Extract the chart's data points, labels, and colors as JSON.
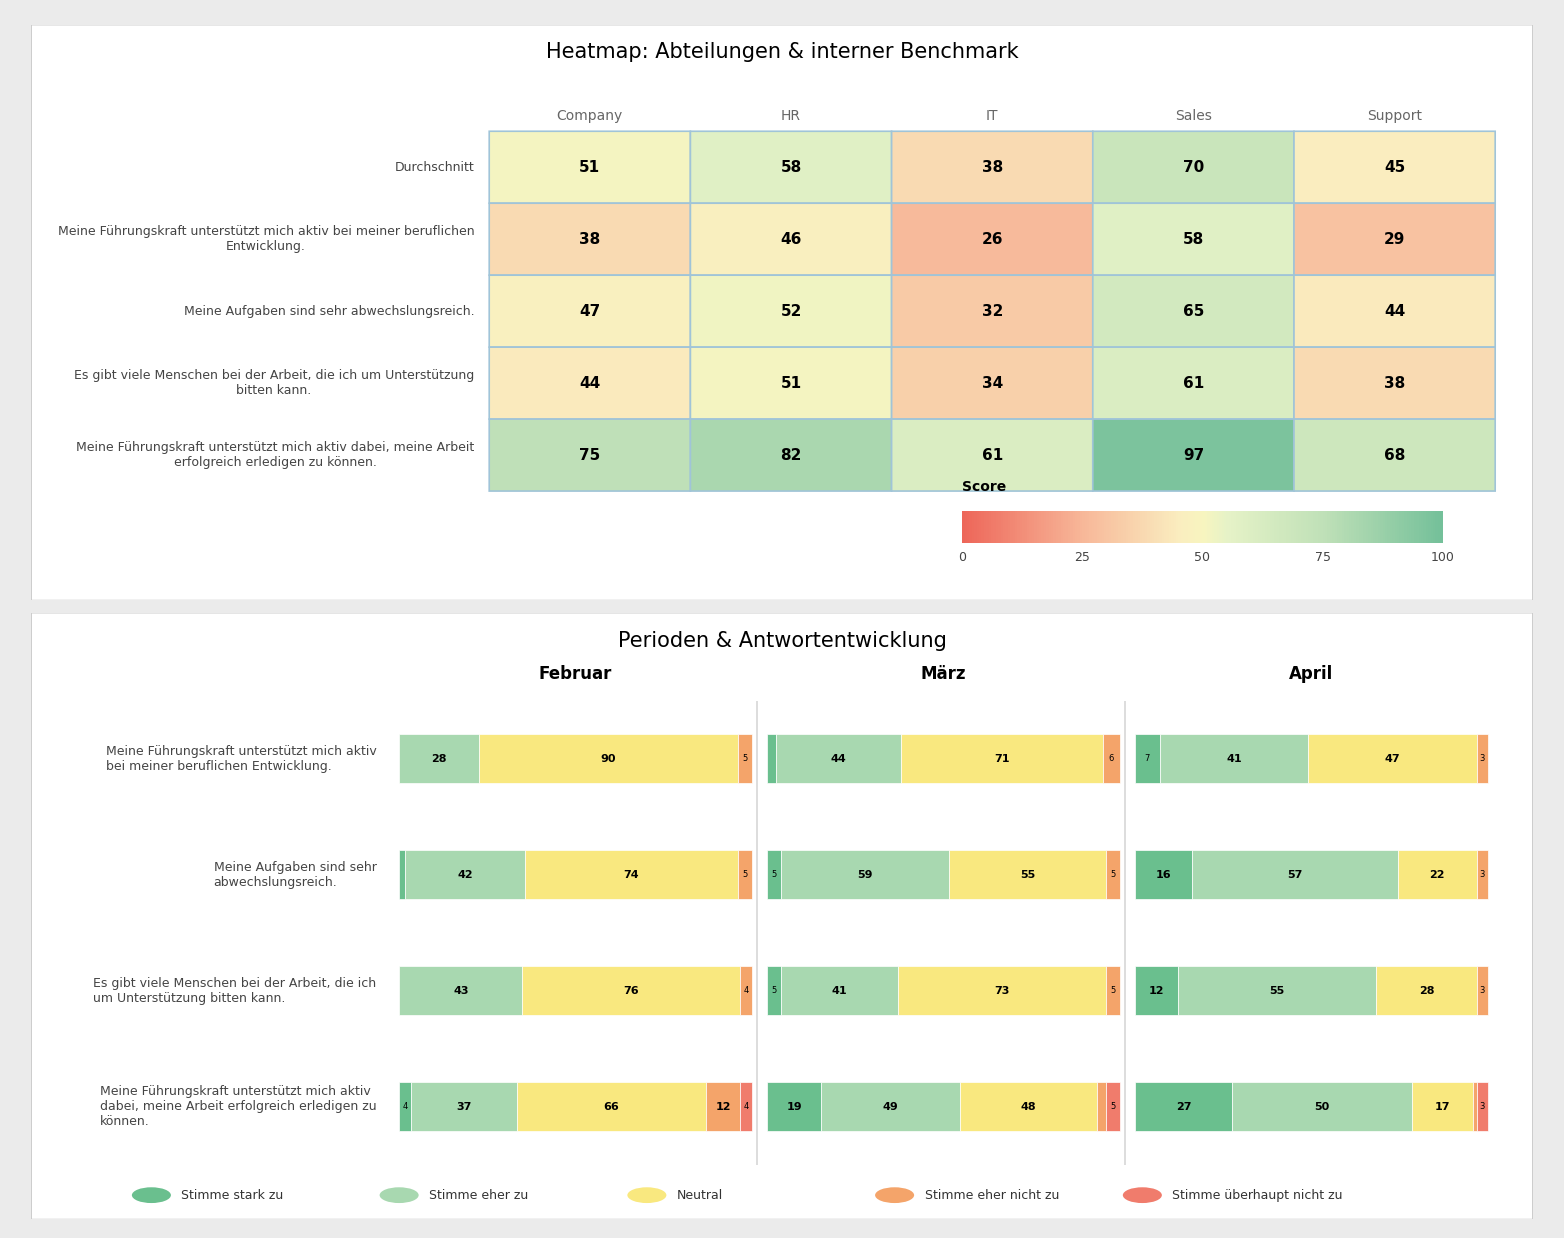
{
  "heatmap_title": "Heatmap: Abteilungen & interner Benchmark",
  "heatmap_columns": [
    "Company",
    "HR",
    "IT",
    "Sales",
    "Support"
  ],
  "heatmap_rows": [
    "Durchschnitt",
    "Meine Führungskraft unterstützt mich aktiv bei meiner beruflichen\nEntwicklung.",
    "Meine Aufgaben sind sehr abwechslungsreich.",
    "Es gibt viele Menschen bei der Arbeit, die ich um Unterstützung\nbitten kann.",
    "Meine Führungskraft unterstützt mich aktiv dabei, meine Arbeit\nerfolgreich erledigen zu können."
  ],
  "heatmap_values": [
    [
      51,
      58,
      38,
      70,
      45
    ],
    [
      38,
      46,
      26,
      58,
      29
    ],
    [
      47,
      52,
      32,
      65,
      44
    ],
    [
      44,
      51,
      34,
      61,
      38
    ],
    [
      75,
      82,
      61,
      97,
      68
    ]
  ],
  "score_label": "Score",
  "score_ticks": [
    0,
    25,
    50,
    75,
    100
  ],
  "period_title": "Perioden & Antwortentwicklung",
  "period_columns": [
    "Februar",
    "März",
    "April"
  ],
  "period_rows": [
    "Meine Führungskraft unterstützt mich aktiv\nbei meiner beruflichen Entwicklung.",
    "Meine Aufgaben sind sehr\nabwechslungsreich.",
    "Es gibt viele Menschen bei der Arbeit, die ich\num Unterstützung bitten kann.",
    "Meine Führungskraft unterstützt mich aktiv\ndabei, meine Arbeit erfolgreich erledigen zu\nkönnen."
  ],
  "period_data": {
    "Februar": [
      [
        0,
        28,
        90,
        5,
        0
      ],
      [
        2,
        42,
        74,
        5,
        0
      ],
      [
        0,
        43,
        76,
        4,
        0
      ],
      [
        4,
        37,
        66,
        12,
        4
      ]
    ],
    "März": [
      [
        3,
        44,
        71,
        6,
        0
      ],
      [
        5,
        59,
        55,
        5,
        0
      ],
      [
        5,
        41,
        73,
        5,
        0
      ],
      [
        19,
        49,
        48,
        3,
        5
      ]
    ],
    "April": [
      [
        7,
        41,
        47,
        3,
        0
      ],
      [
        16,
        57,
        22,
        3,
        0
      ],
      [
        12,
        55,
        28,
        3,
        0
      ],
      [
        27,
        50,
        17,
        1,
        3
      ]
    ]
  },
  "bar_colors": [
    "#6abf8e",
    "#a8d8b0",
    "#f9e87f",
    "#f4a46a",
    "#f07c6c"
  ],
  "legend_labels": [
    "Stimme stark zu",
    "Stimme eher zu",
    "Neutral",
    "Stimme eher nicht zu",
    "Stimme überhaupt nicht zu"
  ],
  "heatmap_bg": "#ffffff",
  "panel_bg": "#ebebeb",
  "cell_border_color": "#a0c4d8"
}
